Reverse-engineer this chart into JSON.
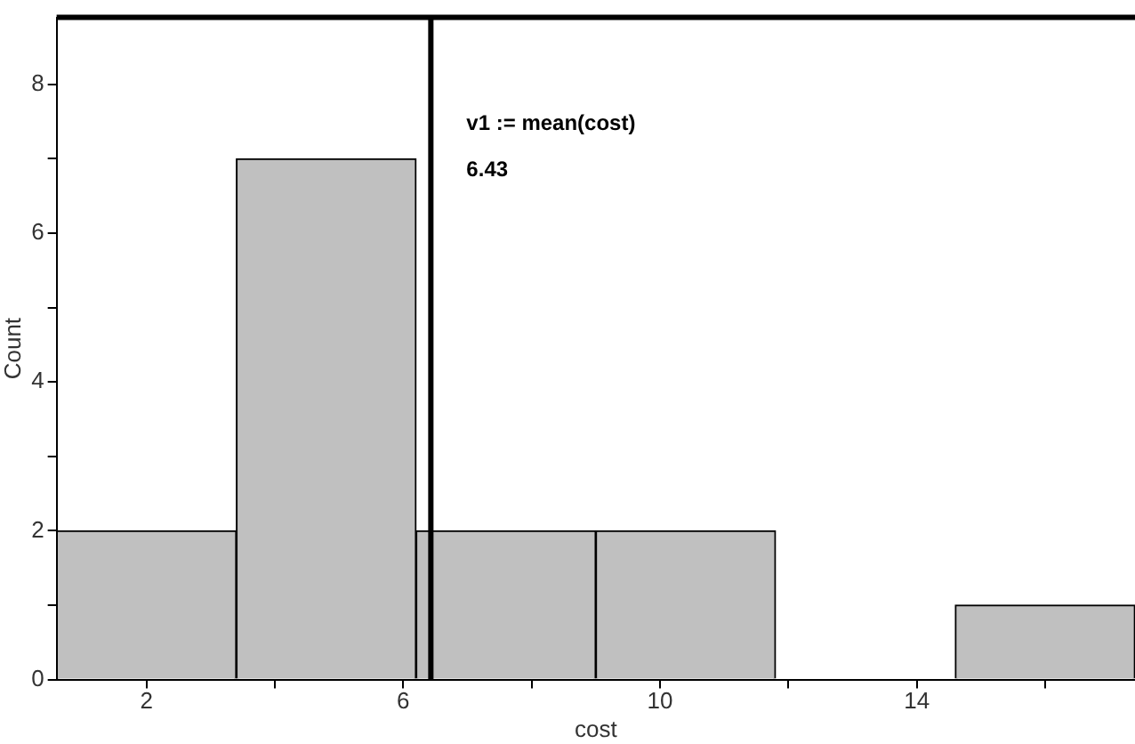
{
  "chart_data": {
    "type": "histogram",
    "xlabel": "cost",
    "ylabel": "Count",
    "bins": [
      0.6,
      3.4,
      6.2,
      9.0,
      11.8,
      14.6,
      17.4
    ],
    "values": [
      2,
      7,
      2,
      2,
      0,
      1
    ],
    "color": "#c0c0c0",
    "xlim": [
      0.6,
      17.4
    ],
    "xticks": [
      2,
      {
        "value": 4,
        "label": null
      },
      6,
      {
        "value": 8,
        "label": null
      },
      10,
      {
        "value": 12,
        "label": null
      },
      14,
      {
        "value": 16,
        "label": null
      }
    ],
    "ylim": [
      0,
      8.9
    ],
    "yticks": [
      0,
      {
        "value": 1,
        "label": null
      },
      2,
      {
        "value": 3,
        "label": null
      },
      4,
      {
        "value": 5,
        "label": null
      },
      6,
      {
        "value": 7,
        "label": null
      },
      8
    ],
    "grid": false,
    "legend": false,
    "ref_lines": [
      {
        "axis": "x",
        "value": 6.43,
        "label": "v1 := mean(cost)",
        "color": "#000000"
      }
    ],
    "annotations": [
      "6.43"
    ]
  }
}
